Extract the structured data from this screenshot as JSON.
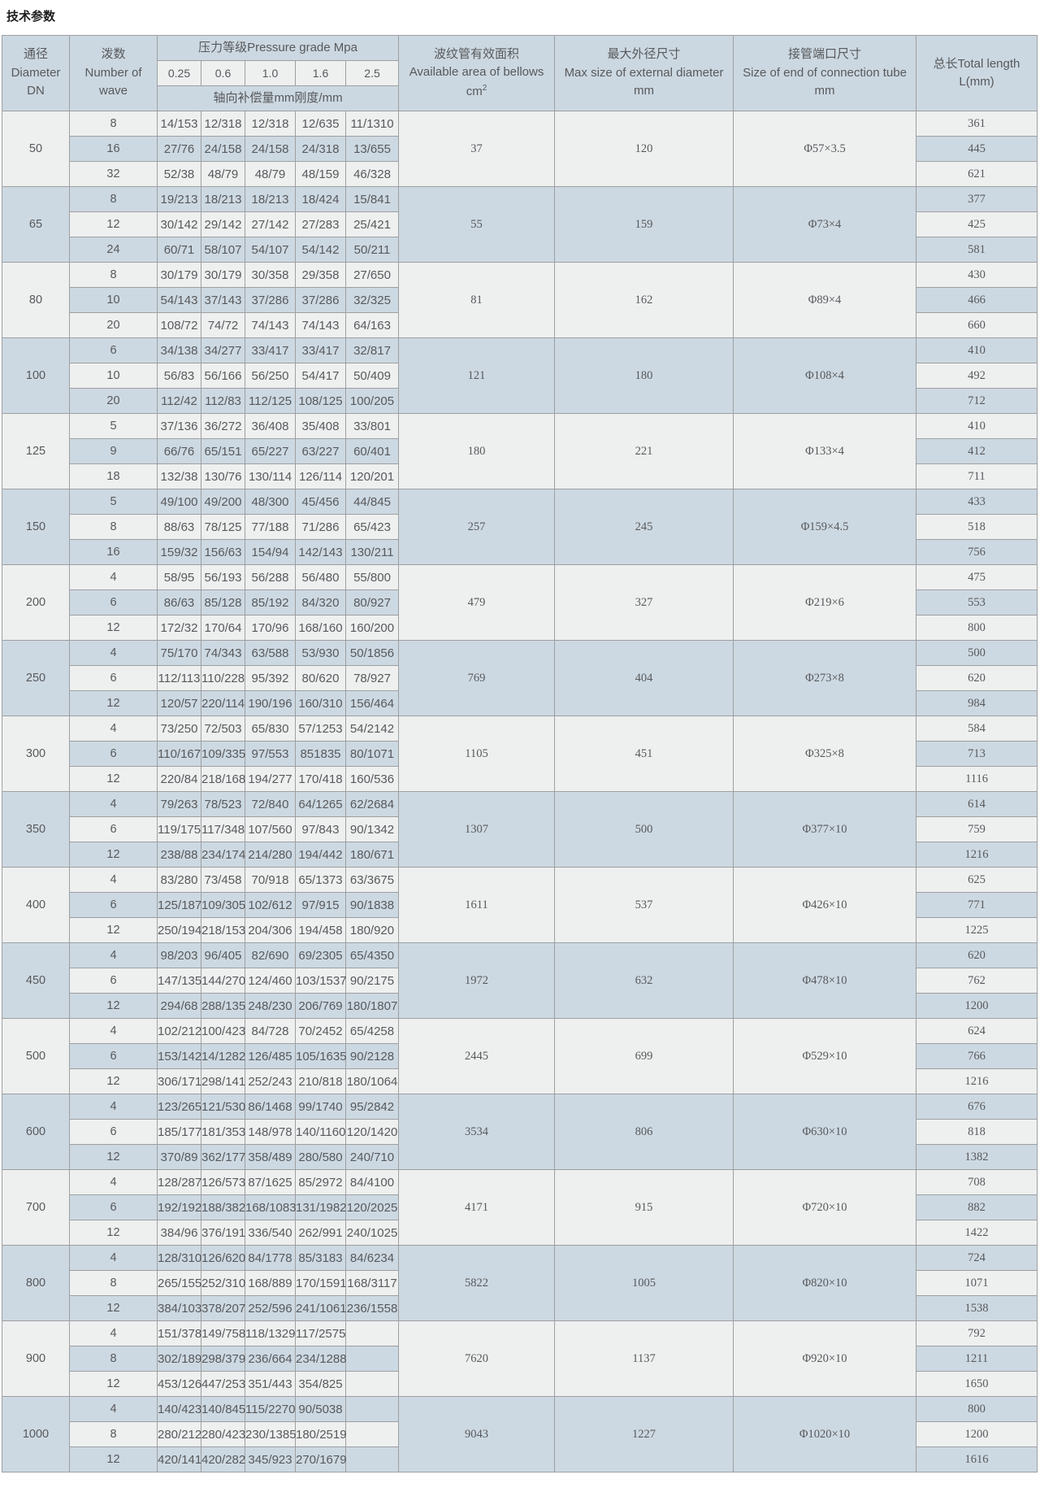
{
  "title": "技术参数",
  "colors": {
    "header_bg": "#ccd8e1",
    "row_light": "#eeefef",
    "row_blue": "#cdd9e2",
    "border": "#9d9fa1"
  },
  "table": {
    "header": {
      "diameter_l1": "通径",
      "diameter_l2": "Diameter",
      "diameter_l3": "DN",
      "waves_l1": "泼数",
      "waves_l2": "Number of",
      "waves_l3": "wave",
      "pressure_grade": "压力等级Pressure grade Mpa",
      "pressure_values": [
        "0.25",
        "0.6",
        "1.0",
        "1.6",
        "2.5"
      ],
      "axial_note": "轴向补偿量mm刚度/mm",
      "area_l1": "波纹管有效面积",
      "area_l2": "Available area of bellows",
      "area_unit_base": "cm",
      "area_unit_sup": "2",
      "maxd_l1": "最大外径尺寸",
      "maxd_l2": "Max size of external diameter",
      "maxd_l3": "mm",
      "tube_l1": "接管端口尺寸",
      "tube_l2": "Size of end of connection tube",
      "tube_l3": "mm",
      "length_l1": "总长Total length",
      "length_l2": "L(mm)"
    },
    "groups": [
      {
        "dn": "50",
        "area": "37",
        "max_diameter": "120",
        "tube": "Φ57×3.5",
        "rows": [
          {
            "waves": "8",
            "pressures": [
              "14/153",
              "12/318",
              "12/318",
              "12/635",
              "11/1310"
            ],
            "length": "361"
          },
          {
            "waves": "16",
            "pressures": [
              "27/76",
              "24/158",
              "24/158",
              "24/318",
              "13/655"
            ],
            "length": "445"
          },
          {
            "waves": "32",
            "pressures": [
              "52/38",
              "48/79",
              "48/79",
              "48/159",
              "46/328"
            ],
            "length": "621"
          }
        ]
      },
      {
        "dn": "65",
        "area": "55",
        "max_diameter": "159",
        "tube": "Φ73×4",
        "rows": [
          {
            "waves": "8",
            "pressures": [
              "19/213",
              "18/213",
              "18/213",
              "18/424",
              "15/841"
            ],
            "length": "377"
          },
          {
            "waves": "12",
            "pressures": [
              "30/142",
              "29/142",
              "27/142",
              "27/283",
              "25/421"
            ],
            "length": "425"
          },
          {
            "waves": "24",
            "pressures": [
              "60/71",
              "58/107",
              "54/107",
              "54/142",
              "50/211"
            ],
            "length": "581"
          }
        ]
      },
      {
        "dn": "80",
        "area": "81",
        "max_diameter": "162",
        "tube": "Φ89×4",
        "rows": [
          {
            "waves": "8",
            "pressures": [
              "30/179",
              "30/179",
              "30/358",
              "29/358",
              "27/650"
            ],
            "length": "430"
          },
          {
            "waves": "10",
            "pressures": [
              "54/143",
              "37/143",
              "37/286",
              "37/286",
              "32/325"
            ],
            "length": "466"
          },
          {
            "waves": "20",
            "pressures": [
              "108/72",
              "74/72",
              "74/143",
              "74/143",
              "64/163"
            ],
            "length": "660"
          }
        ]
      },
      {
        "dn": "100",
        "area": "121",
        "max_diameter": "180",
        "tube": "Φ108×4",
        "rows": [
          {
            "waves": "6",
            "pressures": [
              "34/138",
              "34/277",
              "33/417",
              "33/417",
              "32/817"
            ],
            "length": "410"
          },
          {
            "waves": "10",
            "pressures": [
              "56/83",
              "56/166",
              "56/250",
              "54/417",
              "50/409"
            ],
            "length": "492"
          },
          {
            "waves": "20",
            "pressures": [
              "112/42",
              "112/83",
              "112/125",
              "108/125",
              "100/205"
            ],
            "length": "712"
          }
        ]
      },
      {
        "dn": "125",
        "area": "180",
        "max_diameter": "221",
        "tube": "Φ133×4",
        "rows": [
          {
            "waves": "5",
            "pressures": [
              "37/136",
              "36/272",
              "36/408",
              "35/408",
              "33/801"
            ],
            "length": "410"
          },
          {
            "waves": "9",
            "pressures": [
              "66/76",
              "65/151",
              "65/227",
              "63/227",
              "60/401"
            ],
            "length": "412"
          },
          {
            "waves": "18",
            "pressures": [
              "132/38",
              "130/76",
              "130/114",
              "126/114",
              "120/201"
            ],
            "length": "711"
          }
        ]
      },
      {
        "dn": "150",
        "area": "257",
        "max_diameter": "245",
        "tube": "Φ159×4.5",
        "rows": [
          {
            "waves": "5",
            "pressures": [
              "49/100",
              "49/200",
              "48/300",
              "45/456",
              "44/845"
            ],
            "length": "433"
          },
          {
            "waves": "8",
            "pressures": [
              "88/63",
              "78/125",
              "77/188",
              "71/286",
              "65/423"
            ],
            "length": "518"
          },
          {
            "waves": "16",
            "pressures": [
              "159/32",
              "156/63",
              "154/94",
              "142/143",
              "130/211"
            ],
            "length": "756"
          }
        ]
      },
      {
        "dn": "200",
        "area": "479",
        "max_diameter": "327",
        "tube": "Φ219×6",
        "rows": [
          {
            "waves": "4",
            "pressures": [
              "58/95",
              "56/193",
              "56/288",
              "56/480",
              "55/800"
            ],
            "length": "475"
          },
          {
            "waves": "6",
            "pressures": [
              "86/63",
              "85/128",
              "85/192",
              "84/320",
              "80/927"
            ],
            "length": "553"
          },
          {
            "waves": "12",
            "pressures": [
              "172/32",
              "170/64",
              "170/96",
              "168/160",
              "160/200"
            ],
            "length": "800"
          }
        ]
      },
      {
        "dn": "250",
        "area": "769",
        "max_diameter": "404",
        "tube": "Φ273×8",
        "rows": [
          {
            "waves": "4",
            "pressures": [
              "75/170",
              "74/343",
              "63/588",
              "53/930",
              "50/1856"
            ],
            "length": "500"
          },
          {
            "waves": "6",
            "pressures": [
              "112/113",
              "110/228",
              "95/392",
              "80/620",
              "78/927"
            ],
            "length": "620"
          },
          {
            "waves": "12",
            "pressures": [
              "120/57",
              "220/114",
              "190/196",
              "160/310",
              "156/464"
            ],
            "length": "984"
          }
        ]
      },
      {
        "dn": "300",
        "area": "1105",
        "max_diameter": "451",
        "tube": "Φ325×8",
        "rows": [
          {
            "waves": "4",
            "pressures": [
              "73/250",
              "72/503",
              "65/830",
              "57/1253",
              "54/2142"
            ],
            "length": "584"
          },
          {
            "waves": "6",
            "pressures": [
              "110/167",
              "109/335",
              "97/553",
              "851835",
              "80/1071"
            ],
            "length": "713"
          },
          {
            "waves": "12",
            "pressures": [
              "220/84",
              "218/168",
              "194/277",
              "170/418",
              "160/536"
            ],
            "length": "1116"
          }
        ]
      },
      {
        "dn": "350",
        "area": "1307",
        "max_diameter": "500",
        "tube": "Φ377×10",
        "rows": [
          {
            "waves": "4",
            "pressures": [
              "79/263",
              "78/523",
              "72/840",
              "64/1265",
              "62/2684"
            ],
            "length": "614"
          },
          {
            "waves": "6",
            "pressures": [
              "119/175",
              "117/348",
              "107/560",
              "97/843",
              "90/1342"
            ],
            "length": "759"
          },
          {
            "waves": "12",
            "pressures": [
              "238/88",
              "234/174",
              "214/280",
              "194/442",
              "180/671"
            ],
            "length": "1216"
          }
        ]
      },
      {
        "dn": "400",
        "area": "1611",
        "max_diameter": "537",
        "tube": "Φ426×10",
        "rows": [
          {
            "waves": "4",
            "pressures": [
              "83/280",
              "73/458",
              "70/918",
              "65/1373",
              "63/3675"
            ],
            "length": "625"
          },
          {
            "waves": "6",
            "pressures": [
              "125/187",
              "109/305",
              "102/612",
              "97/915",
              "90/1838"
            ],
            "length": "771"
          },
          {
            "waves": "12",
            "pressures": [
              "250/194",
              "218/153",
              "204/306",
              "194/458",
              "180/920"
            ],
            "length": "1225"
          }
        ]
      },
      {
        "dn": "450",
        "area": "1972",
        "max_diameter": "632",
        "tube": "Φ478×10",
        "rows": [
          {
            "waves": "4",
            "pressures": [
              "98/203",
              "96/405",
              "82/690",
              "69/2305",
              "65/4350"
            ],
            "length": "620"
          },
          {
            "waves": "6",
            "pressures": [
              "147/135",
              "144/270",
              "124/460",
              "103/1537",
              "90/2175"
            ],
            "length": "762"
          },
          {
            "waves": "12",
            "pressures": [
              "294/68",
              "288/135",
              "248/230",
              "206/769",
              "180/1807"
            ],
            "length": "1200"
          }
        ]
      },
      {
        "dn": "500",
        "area": "2445",
        "max_diameter": "699",
        "tube": "Φ529×10",
        "rows": [
          {
            "waves": "4",
            "pressures": [
              "102/212",
              "100/423",
              "84/728",
              "70/2452",
              "65/4258"
            ],
            "length": "624"
          },
          {
            "waves": "6",
            "pressures": [
              "153/142",
              "14/1282",
              "126/485",
              "105/1635",
              "90/2128"
            ],
            "length": "766"
          },
          {
            "waves": "12",
            "pressures": [
              "306/171",
              "298/141",
              "252/243",
              "210/818",
              "180/1064"
            ],
            "length": "1216"
          }
        ]
      },
      {
        "dn": "600",
        "area": "3534",
        "max_diameter": "806",
        "tube": "Φ630×10",
        "rows": [
          {
            "waves": "4",
            "pressures": [
              "123/265",
              "121/530",
              "86/1468",
              "99/1740",
              "95/2842"
            ],
            "length": "676"
          },
          {
            "waves": "6",
            "pressures": [
              "185/177",
              "181/353",
              "148/978",
              "140/1160",
              "120/1420"
            ],
            "length": "818"
          },
          {
            "waves": "12",
            "pressures": [
              "370/89",
              "362/177",
              "358/489",
              "280/580",
              "240/710"
            ],
            "length": "1382"
          }
        ]
      },
      {
        "dn": "700",
        "area": "4171",
        "max_diameter": "915",
        "tube": "Φ720×10",
        "rows": [
          {
            "waves": "4",
            "pressures": [
              "128/287",
              "126/573",
              "87/1625",
              "85/2972",
              "84/4100"
            ],
            "length": "708"
          },
          {
            "waves": "6",
            "pressures": [
              "192/192",
              "188/382",
              "168/1083",
              "131/1982",
              "120/2025"
            ],
            "length": "882"
          },
          {
            "waves": "12",
            "pressures": [
              "384/96",
              "376/191",
              "336/540",
              "262/991",
              "240/1025"
            ],
            "length": "1422"
          }
        ]
      },
      {
        "dn": "800",
        "area": "5822",
        "max_diameter": "1005",
        "tube": "Φ820×10",
        "rows": [
          {
            "waves": "4",
            "pressures": [
              "128/310",
              "126/620",
              "84/1778",
              "85/3183",
              "84/6234"
            ],
            "length": "724"
          },
          {
            "waves": "8",
            "pressures": [
              "265/155",
              "252/310",
              "168/889",
              "170/1591",
              "168/3117"
            ],
            "length": "1071"
          },
          {
            "waves": "12",
            "pressures": [
              "384/103",
              "378/207",
              "252/596",
              "241/1061",
              "236/1558"
            ],
            "length": "1538"
          }
        ]
      },
      {
        "dn": "900",
        "area": "7620",
        "max_diameter": "1137",
        "tube": "Φ920×10",
        "rows": [
          {
            "waves": "4",
            "pressures": [
              "151/378",
              "149/758",
              "118/1329",
              "117/2575",
              ""
            ],
            "length": "792"
          },
          {
            "waves": "8",
            "pressures": [
              "302/189",
              "298/379",
              "236/664",
              "234/1288",
              ""
            ],
            "length": "1211"
          },
          {
            "waves": "12",
            "pressures": [
              "453/126",
              "447/253",
              "351/443",
              "354/825",
              ""
            ],
            "length": "1650"
          }
        ]
      },
      {
        "dn": "1000",
        "area": "9043",
        "max_diameter": "1227",
        "tube": "Φ1020×10",
        "rows": [
          {
            "waves": "4",
            "pressures": [
              "140/423",
              "140/845",
              "115/2270",
              "90/5038",
              ""
            ],
            "length": "800"
          },
          {
            "waves": "8",
            "pressures": [
              "280/212",
              "280/423",
              "230/1385",
              "180/2519",
              ""
            ],
            "length": "1200"
          },
          {
            "waves": "12",
            "pressures": [
              "420/141",
              "420/282",
              "345/923",
              "270/1679",
              ""
            ],
            "length": "1616"
          }
        ]
      }
    ]
  }
}
